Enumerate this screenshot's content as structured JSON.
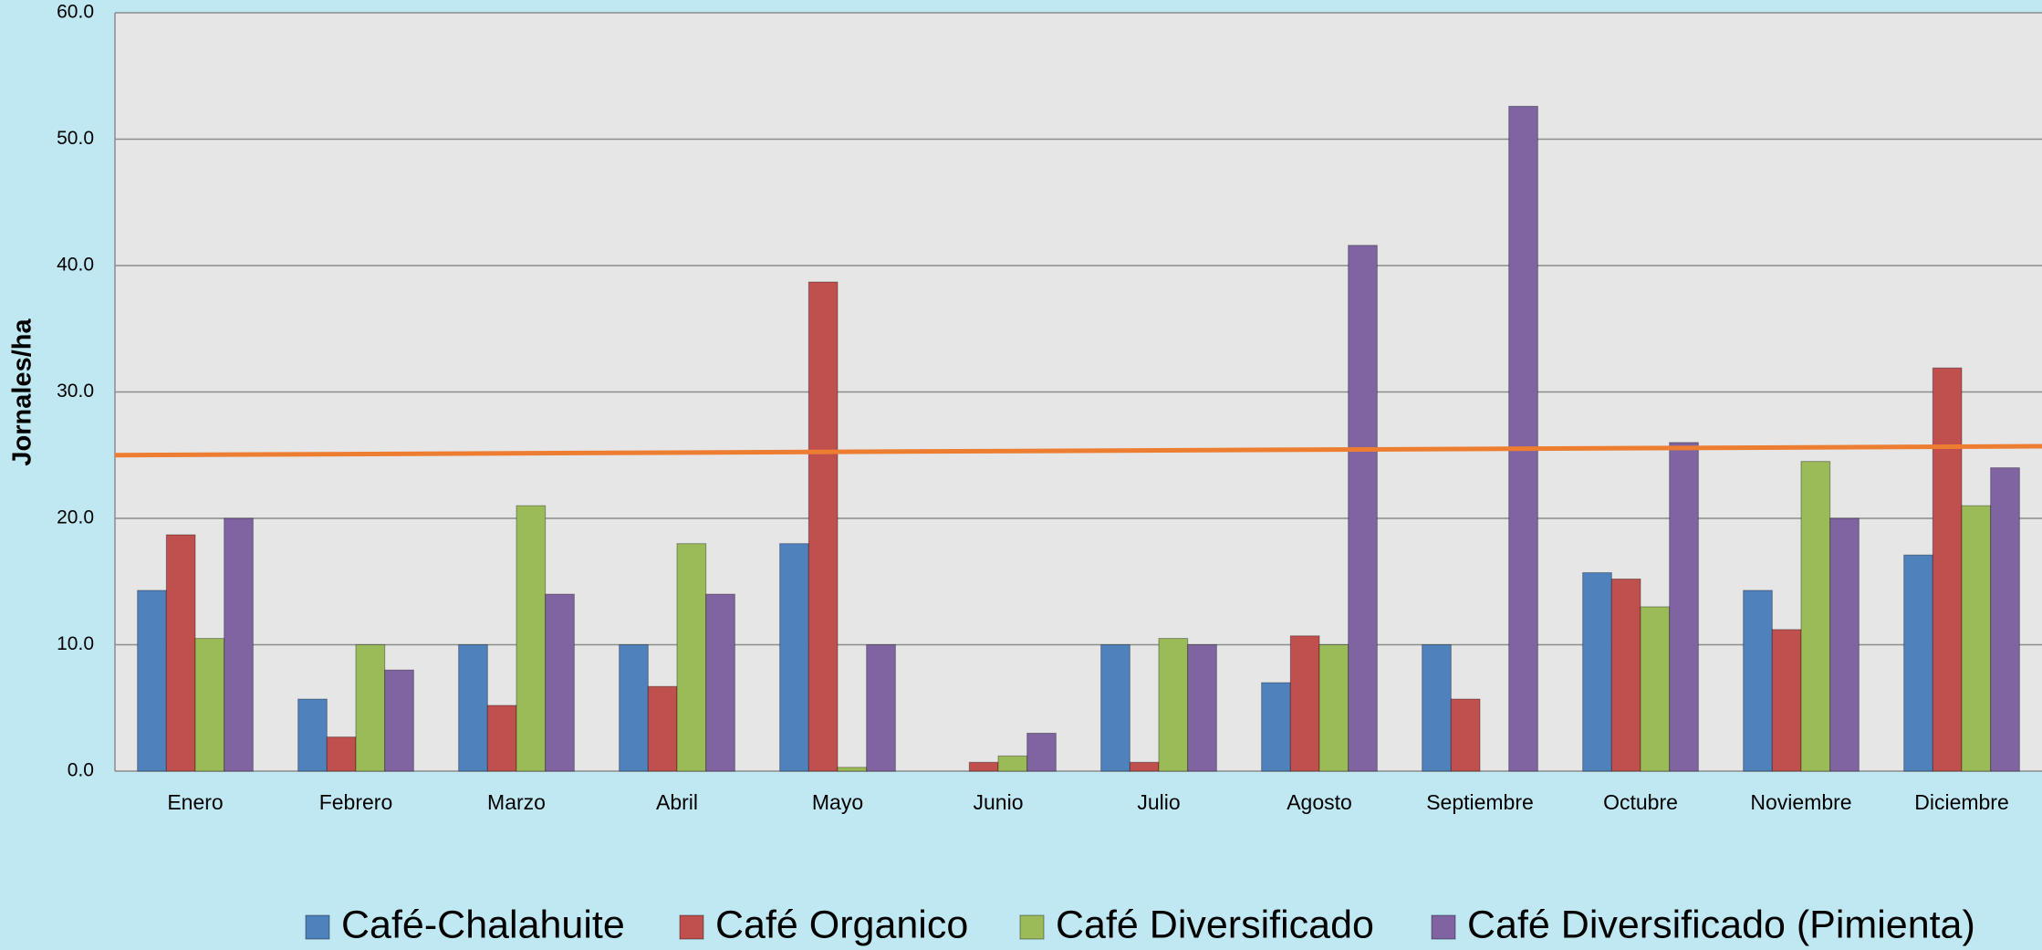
{
  "chart_data": {
    "type": "bar",
    "y_label": "Jornales/ha",
    "categories": [
      "Enero",
      "Febrero",
      "Marzo",
      "Abril",
      "Mayo",
      "Junio",
      "Julio",
      "Agosto",
      "Septiembre",
      "Octubre",
      "Noviembre",
      "Diciembre"
    ],
    "series": [
      {
        "name": "Café-Chalahuite",
        "color": "#4f81bd",
        "values": [
          14.3,
          5.7,
          10,
          10,
          18,
          0,
          10,
          7,
          10,
          15.7,
          14.3,
          17.1
        ]
      },
      {
        "name": "Café Organico",
        "color": "#c0504d",
        "values": [
          18.7,
          2.7,
          5.2,
          6.7,
          38.7,
          0.7,
          0.7,
          10.7,
          5.7,
          15.2,
          11.2,
          31.9
        ]
      },
      {
        "name": "Café Diversificado",
        "color": "#9bbb59",
        "values": [
          10.5,
          10,
          21,
          18,
          0.3,
          1.2,
          10.5,
          10,
          0,
          13,
          24.5,
          21
        ]
      },
      {
        "name": "Café Diversificado (Pimienta)",
        "color": "#8064a2",
        "values": [
          20,
          8,
          14,
          14,
          10,
          3,
          10,
          41.6,
          52.6,
          26,
          20,
          24
        ]
      }
    ],
    "trendline": {
      "color": "#ed7d31",
      "values": [
        25.0,
        25.7
      ]
    },
    "ylim": [
      0,
      60
    ],
    "yticks": [
      {
        "value": 0,
        "label": "0.0"
      },
      {
        "value": 10,
        "label": "10.0"
      },
      {
        "value": 20,
        "label": "20.0"
      },
      {
        "value": 30,
        "label": "30.0"
      },
      {
        "value": 40,
        "label": "40.0"
      },
      {
        "value": 50,
        "label": "50.0"
      },
      {
        "value": 60,
        "label": "60.0"
      }
    ],
    "grid": true,
    "legend": "bottom"
  }
}
